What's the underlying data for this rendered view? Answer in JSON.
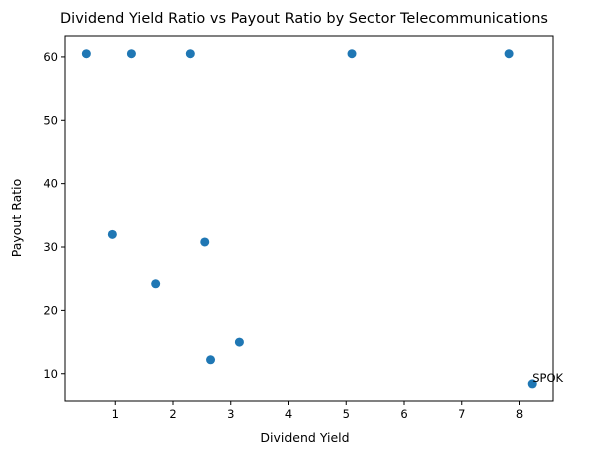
{
  "chart_data": {
    "type": "scatter",
    "title": "Dividend Yield Ratio vs Payout Ratio by Sector Telecommunications",
    "xlabel": "Dividend Yield",
    "ylabel": "Payout Ratio",
    "xlim": [
      0.13,
      8.58
    ],
    "ylim": [
      5.7,
      63.3
    ],
    "xticks": [
      1,
      2,
      3,
      4,
      5,
      6,
      7,
      8
    ],
    "yticks": [
      10,
      20,
      30,
      40,
      50,
      60
    ],
    "xtick_labels": [
      "1",
      "2",
      "3",
      "4",
      "5",
      "6",
      "7",
      "8"
    ],
    "ytick_labels": [
      "10",
      "20",
      "30",
      "40",
      "50",
      "60"
    ],
    "grid": false,
    "marker_color": "#1f77b4",
    "points": [
      {
        "x": 0.5,
        "y": 60.5
      },
      {
        "x": 1.28,
        "y": 60.5
      },
      {
        "x": 2.3,
        "y": 60.5
      },
      {
        "x": 5.1,
        "y": 60.5
      },
      {
        "x": 7.82,
        "y": 60.5
      },
      {
        "x": 0.95,
        "y": 32.0
      },
      {
        "x": 2.55,
        "y": 30.8
      },
      {
        "x": 1.7,
        "y": 24.2
      },
      {
        "x": 3.15,
        "y": 15.0
      },
      {
        "x": 2.65,
        "y": 12.2
      },
      {
        "x": 8.22,
        "y": 8.4
      }
    ],
    "annotations": [
      {
        "text": "SPOK",
        "x": 8.22,
        "y": 8.4
      }
    ]
  }
}
